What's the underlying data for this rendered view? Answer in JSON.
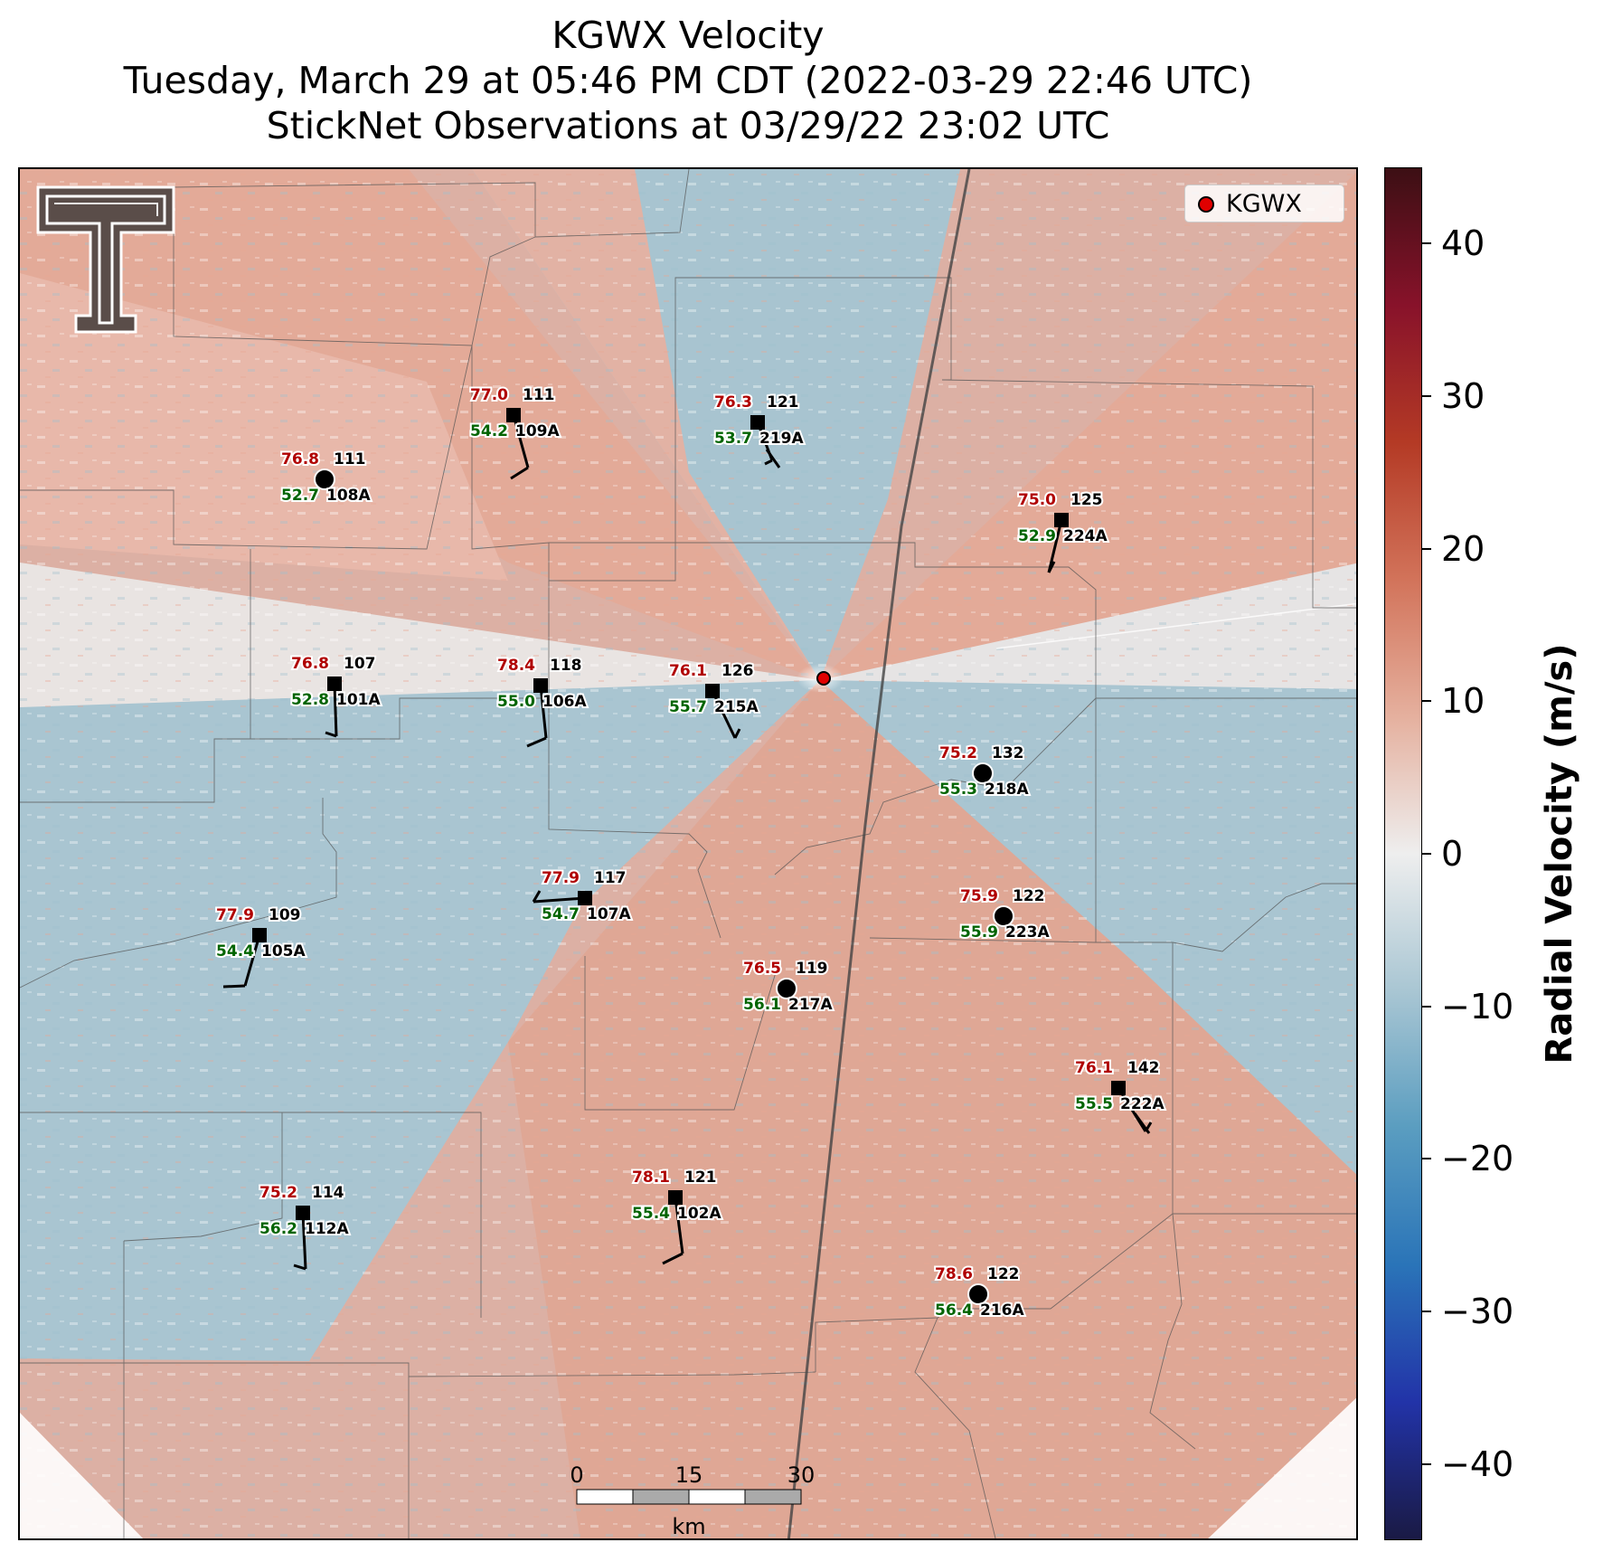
{
  "title": {
    "line1": "KGWX Velocity",
    "line2": "Tuesday, March 29 at 05:46 PM CDT (2022-03-29 22:46 UTC)",
    "line3": "StickNet Observations at 03/29/22 23:02 UTC"
  },
  "legend": {
    "label": "KGWX",
    "marker_color": "#e00000"
  },
  "colorbar": {
    "label": "Radial Velocity (m/s)",
    "min": -45,
    "max": 45,
    "ticks": [
      "40",
      "30",
      "20",
      "10",
      "0",
      "−10",
      "−20",
      "−30",
      "−40"
    ],
    "tick_values": [
      40,
      30,
      20,
      10,
      0,
      -10,
      -20,
      -30,
      -40
    ],
    "colors": [
      "#1a1a44",
      "#2233a8",
      "#2a74b8",
      "#5a9dc0",
      "#a9c6d3",
      "#eeeeee",
      "#e5b09e",
      "#d2735a",
      "#b43a25",
      "#88122a",
      "#3c0f14"
    ]
  },
  "scale_bar": {
    "ticks": [
      "0",
      "15",
      "30"
    ],
    "unit": "km"
  },
  "stations": [
    {
      "id": "108A",
      "temp": "76.8",
      "dew": "52.7",
      "k": "111",
      "marker": "circle"
    },
    {
      "id": "109A",
      "temp": "77.0",
      "dew": "54.2",
      "k": "111",
      "marker": "square"
    },
    {
      "id": "219A",
      "temp": "76.3",
      "dew": "53.7",
      "k": "121",
      "marker": "square"
    },
    {
      "id": "224A",
      "temp": "75.0",
      "dew": "52.9",
      "k": "125",
      "marker": "square"
    },
    {
      "id": "101A",
      "temp": "76.8",
      "dew": "52.8",
      "k": "107",
      "marker": "square"
    },
    {
      "id": "106A",
      "temp": "78.4",
      "dew": "55.0",
      "k": "118",
      "marker": "square"
    },
    {
      "id": "215A",
      "temp": "76.1",
      "dew": "55.7",
      "k": "126",
      "marker": "square"
    },
    {
      "id": "218A",
      "temp": "75.2",
      "dew": "55.3",
      "k": "132",
      "marker": "circle"
    },
    {
      "id": "107A",
      "temp": "77.9",
      "dew": "54.7",
      "k": "117",
      "marker": "square"
    },
    {
      "id": "105A",
      "temp": "77.9",
      "dew": "54.4",
      "k": "109",
      "marker": "square"
    },
    {
      "id": "223A",
      "temp": "75.9",
      "dew": "55.9",
      "k": "122",
      "marker": "circle"
    },
    {
      "id": "217A",
      "temp": "76.5",
      "dew": "56.1",
      "k": "119",
      "marker": "circle"
    },
    {
      "id": "222A",
      "temp": "76.1",
      "dew": "55.5",
      "k": "142",
      "marker": "square"
    },
    {
      "id": "112A",
      "temp": "75.2",
      "dew": "56.2",
      "k": "114",
      "marker": "square"
    },
    {
      "id": "102A",
      "temp": "78.1",
      "dew": "55.4",
      "k": "121",
      "marker": "square"
    },
    {
      "id": "216A",
      "temp": "78.6",
      "dew": "56.4",
      "k": "122",
      "marker": "circle"
    }
  ]
}
